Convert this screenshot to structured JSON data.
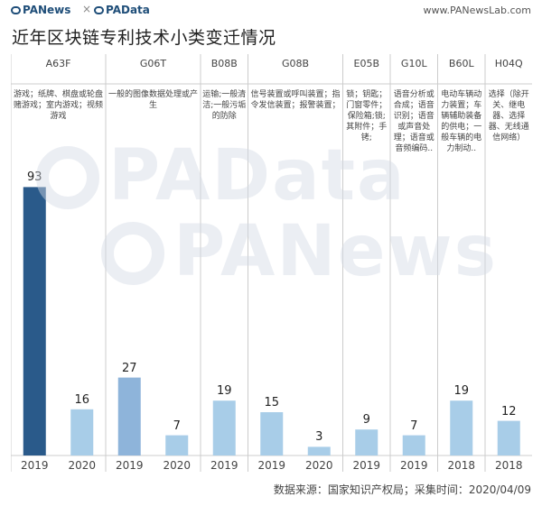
{
  "header": {
    "logo1": "PANews",
    "separator": "×",
    "logo2": "PAData",
    "site": "www.PANewsLab.com"
  },
  "title": "近年区块链专利技术小类变迁情况",
  "watermark": {
    "line1": "PAData",
    "line2": "PANews"
  },
  "footer": "数据来源：国家知识产权局；采集时间：2020/04/09",
  "colors": {
    "bar_dark": "#2a5a8a",
    "bar_mid": "#8eb4da",
    "bar_light": "#a8cde8",
    "grid": "#cccccc"
  },
  "chart_data": {
    "type": "bar",
    "title": "近年区块链专利技术小类变迁情况",
    "ylim": [
      0,
      100
    ],
    "groups": [
      {
        "code": "A63F",
        "desc": "游戏；纸牌、棋盘或轮盘赌游戏；室内游戏；视频游戏"
      },
      {
        "code": "G06T",
        "desc": "一般的图像数据处理或产生"
      },
      {
        "code": "B08B",
        "desc": "运输;一般清洁;一般污垢的防除"
      },
      {
        "code": "G08B",
        "desc": "信号装置或呼叫装置；指令发信装置；报警装置；"
      },
      {
        "code": "E05B",
        "desc": "锁；钥匙；门窗零件；保险箱;锁;其附件；手铐;"
      },
      {
        "code": "G10L",
        "desc": "语音分析或合成；语音识别；语音或声音处理；语音或音频编码.."
      },
      {
        "code": "B60L",
        "desc": "电动车辆动力装置；车辆辅助装备的供电；一般车辆的电力制动.."
      },
      {
        "code": "H04Q",
        "desc": "选择（除开关、继电器、选择器、无线通信网络）"
      }
    ],
    "bars": [
      {
        "group": 0,
        "year": "2019",
        "value": 93,
        "tone": "dark"
      },
      {
        "group": 0,
        "year": "2020",
        "value": 16,
        "tone": "light"
      },
      {
        "group": 1,
        "year": "2019",
        "value": 27,
        "tone": "mid"
      },
      {
        "group": 1,
        "year": "2020",
        "value": 7,
        "tone": "light"
      },
      {
        "group": 2,
        "year": "2019",
        "value": 19,
        "tone": "light"
      },
      {
        "group": 3,
        "year": "2019",
        "value": 15,
        "tone": "light"
      },
      {
        "group": 3,
        "year": "2020",
        "value": 3,
        "tone": "light"
      },
      {
        "group": 4,
        "year": "2019",
        "value": 9,
        "tone": "light"
      },
      {
        "group": 5,
        "year": "2019",
        "value": 7,
        "tone": "light"
      },
      {
        "group": 6,
        "year": "2018",
        "value": 19,
        "tone": "light"
      },
      {
        "group": 7,
        "year": "2018",
        "value": 12,
        "tone": "light"
      }
    ]
  }
}
